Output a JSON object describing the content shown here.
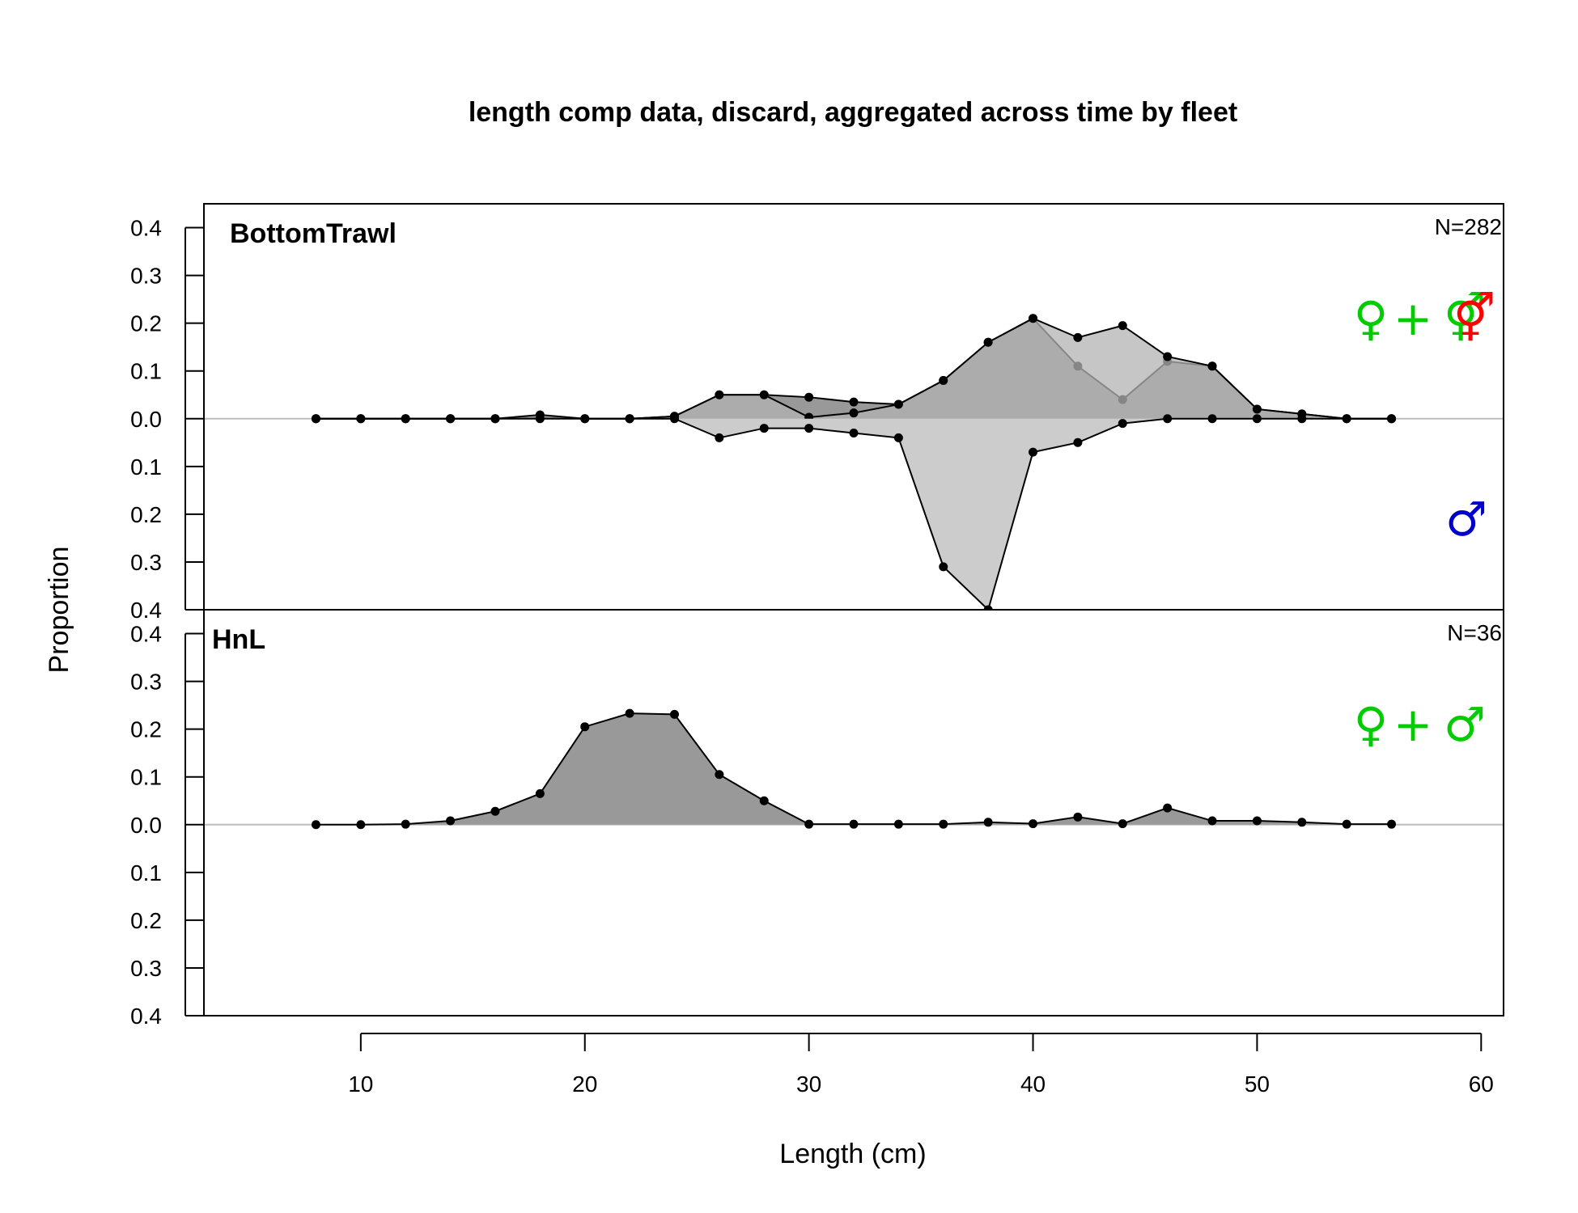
{
  "chart_data": {
    "type": "area",
    "title": "length comp data, discard, aggregated across time by fleet",
    "xlabel": "Length (cm)",
    "ylabel": "Proportion",
    "xlim": [
      3,
      61
    ],
    "x_ticks": [
      10,
      20,
      30,
      40,
      50,
      60
    ],
    "x_tick_labels": [
      "10",
      "20",
      "30",
      "40",
      "50",
      "60"
    ],
    "panel_ylim": [
      -0.4,
      0.45
    ],
    "y_ticks": [
      0.4,
      0.3,
      0.2,
      0.1,
      0.0,
      -0.1,
      -0.2,
      -0.3,
      -0.4
    ],
    "y_tick_labels": [
      "0.4",
      "0.3",
      "0.2",
      "0.1",
      "0.0",
      "0.1",
      "0.2",
      "0.3",
      "0.4"
    ],
    "colors": {
      "female_or_combined_fill": "#b3b3b3",
      "overlap_fill": "#999999",
      "male_fill": "#cccccc",
      "line": "#000000",
      "zero_line": "#bebebe",
      "combined_symbol": "#00cc00",
      "female_symbol": "#ff0000",
      "male_symbol": "#0000cc"
    },
    "panels": [
      {
        "label": "BottomTrawl",
        "n_label": "N=282",
        "legend_top": [
          {
            "glyph": "♀",
            "color": "#00cc00"
          },
          {
            "glyph": "+",
            "color": "#00cc00"
          },
          {
            "glyph": "⚥",
            "color": "#00cc00"
          },
          {
            "glyph": "⚥",
            "color": "#ff0000"
          }
        ],
        "legend_bottom": [
          {
            "glyph": "♂",
            "color": "#0000cc"
          }
        ],
        "x": [
          8,
          10,
          12,
          14,
          16,
          18,
          20,
          22,
          24,
          26,
          28,
          30,
          32,
          34,
          36,
          38,
          40,
          42,
          44,
          46,
          48,
          50,
          52,
          54,
          56
        ],
        "series": [
          {
            "name": "",
            "side": "up",
            "values": [
              0,
              0,
              0,
              0,
              0,
              0.003,
              0,
              0,
              0.005,
              0.05,
              0.05,
              0.045,
              0.035,
              0.03,
              0.08,
              0.16,
              0.21,
              0.11,
              0.04,
              0.12,
              0.11,
              0.02,
              0.01,
              0,
              0
            ]
          },
          {
            "name": "",
            "side": "up",
            "values": [
              0,
              0,
              0,
              0,
              0,
              0.008,
              0,
              0,
              0.005,
              0.05,
              0.05,
              0.003,
              0.012,
              0.03,
              0.08,
              0.16,
              0.21,
              0.17,
              0.195,
              0.13,
              0.11,
              0.02,
              0.01,
              0,
              0
            ]
          },
          {
            "name": "",
            "side": "down",
            "values": [
              0,
              0,
              0,
              0,
              0,
              0,
              0,
              0,
              0,
              0.04,
              0.02,
              0.02,
              0.03,
              0.04,
              0.31,
              0.4,
              0.07,
              0.05,
              0.01,
              0,
              0,
              0,
              0,
              0,
              0
            ]
          }
        ]
      },
      {
        "label": "HnL",
        "n_label": "N=36",
        "legend_top": [
          {
            "glyph": "♀",
            "color": "#00cc00"
          },
          {
            "glyph": "+",
            "color": "#00cc00"
          },
          {
            "glyph": "♂",
            "color": "#00cc00"
          }
        ],
        "legend_bottom": [],
        "x": [
          8,
          10,
          12,
          14,
          16,
          18,
          20,
          22,
          24,
          26,
          28,
          30,
          32,
          34,
          36,
          38,
          40,
          42,
          44,
          46,
          48,
          50,
          52,
          54,
          56
        ],
        "series": [
          {
            "name": "",
            "side": "up",
            "values": [
              0,
              0,
              0.001,
              0.008,
              0.028,
              0.065,
              0.205,
              0.233,
              0.231,
              0.105,
              0.05,
              0.001,
              0.001,
              0.001,
              0.001,
              0.005,
              0.002,
              0.016,
              0.002,
              0.035,
              0.008,
              0.008,
              0.005,
              0.001,
              0.001
            ]
          }
        ]
      }
    ]
  }
}
